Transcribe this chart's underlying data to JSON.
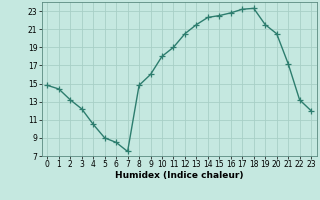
{
  "x": [
    0,
    1,
    2,
    3,
    4,
    5,
    6,
    7,
    8,
    9,
    10,
    11,
    12,
    13,
    14,
    15,
    16,
    17,
    18,
    19,
    20,
    21,
    22,
    23
  ],
  "y": [
    14.8,
    14.4,
    13.2,
    12.2,
    10.5,
    9.0,
    8.5,
    7.5,
    14.8,
    16.0,
    18.0,
    19.0,
    20.5,
    21.5,
    22.3,
    22.5,
    22.8,
    23.2,
    23.3,
    21.5,
    20.5,
    17.2,
    13.2,
    12.0
  ],
  "line_color": "#2d7d6e",
  "marker": "+",
  "marker_size": 4,
  "bg_color": "#c5e8e0",
  "grid_color": "#a8cfc6",
  "xlabel": "Humidex (Indice chaleur)",
  "xlim": [
    -0.5,
    23.5
  ],
  "ylim": [
    7,
    24
  ],
  "yticks": [
    7,
    9,
    11,
    13,
    15,
    17,
    19,
    21,
    23
  ],
  "xticks": [
    0,
    1,
    2,
    3,
    4,
    5,
    6,
    7,
    8,
    9,
    10,
    11,
    12,
    13,
    14,
    15,
    16,
    17,
    18,
    19,
    20,
    21,
    22,
    23
  ],
  "label_fontsize": 6.5,
  "tick_fontsize": 5.5,
  "linewidth": 1.0,
  "markeredgewidth": 0.9
}
